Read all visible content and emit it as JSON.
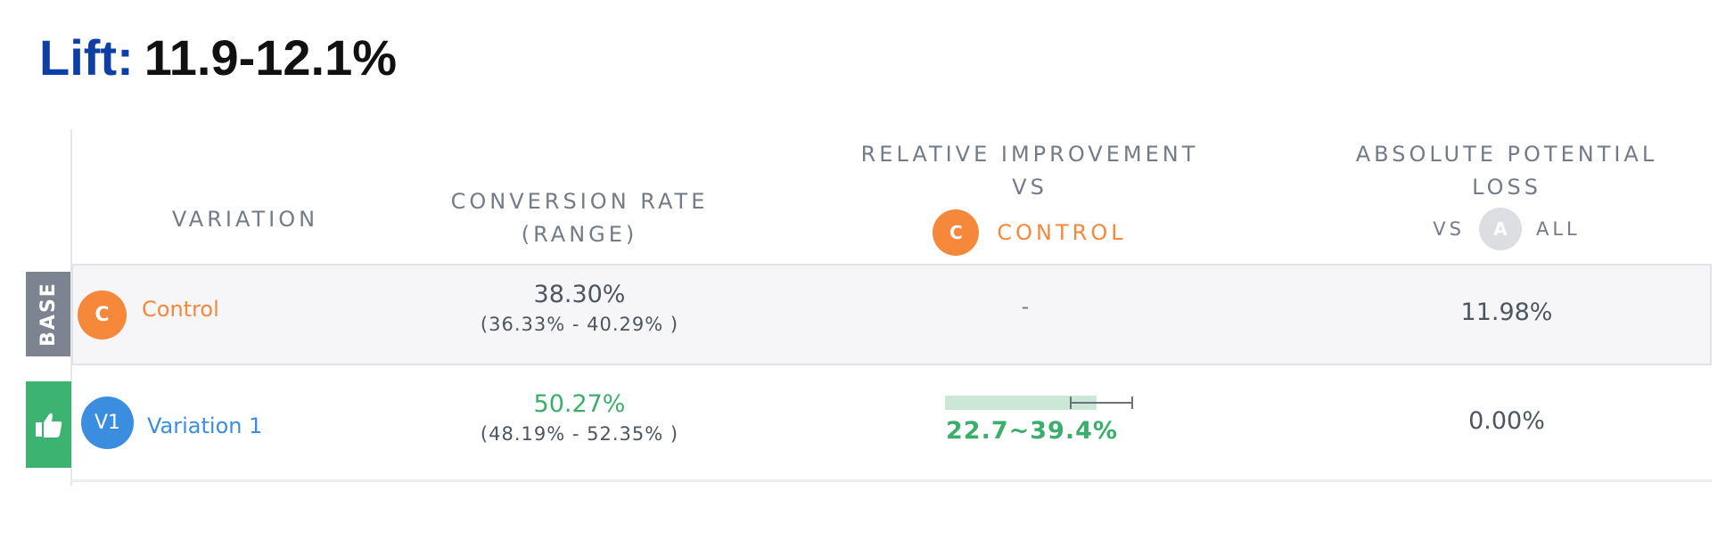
{
  "lift": {
    "label": "Lift:",
    "value": "11.9-12.1%"
  },
  "headers": {
    "variation": "VARIATION",
    "conversion_rate": [
      "CONVERSION RATE",
      "(RANGE)"
    ],
    "relative_improvement": [
      "RELATIVE IMPROVEMENT",
      "VS"
    ],
    "relative_vs_badge": "C",
    "relative_vs_name": "CONTROL",
    "absolute_loss": [
      "ABSOLUTE POTENTIAL",
      "LOSS"
    ],
    "absolute_vs_prefix": "VS",
    "absolute_vs_badge": "A",
    "absolute_vs_suffix": "ALL"
  },
  "rows": [
    {
      "tag": "BASE",
      "badge": "C",
      "name": "Control",
      "conversion_rate": "38.30%",
      "conversion_range": "(36.33% - 40.29% )",
      "relative_improvement": "-",
      "absolute_loss": "11.98%"
    },
    {
      "tag_icon": "thumbs-up-icon",
      "badge": "V1",
      "name": "Variation 1",
      "conversion_rate": "50.27%",
      "conversion_range": "(48.19% - 52.35% )",
      "relative_improvement": "22.7~39.4%",
      "improvement_interval": {
        "low": 22.7,
        "high": 39.4
      },
      "absolute_loss": "0.00%"
    }
  ],
  "colors": {
    "control": "#f5883a",
    "variation": "#3b8de0",
    "winner": "#3cb371",
    "base_tag": "#7b8490",
    "header_text": "#727b87",
    "lift_label": "#0d3fa6"
  }
}
